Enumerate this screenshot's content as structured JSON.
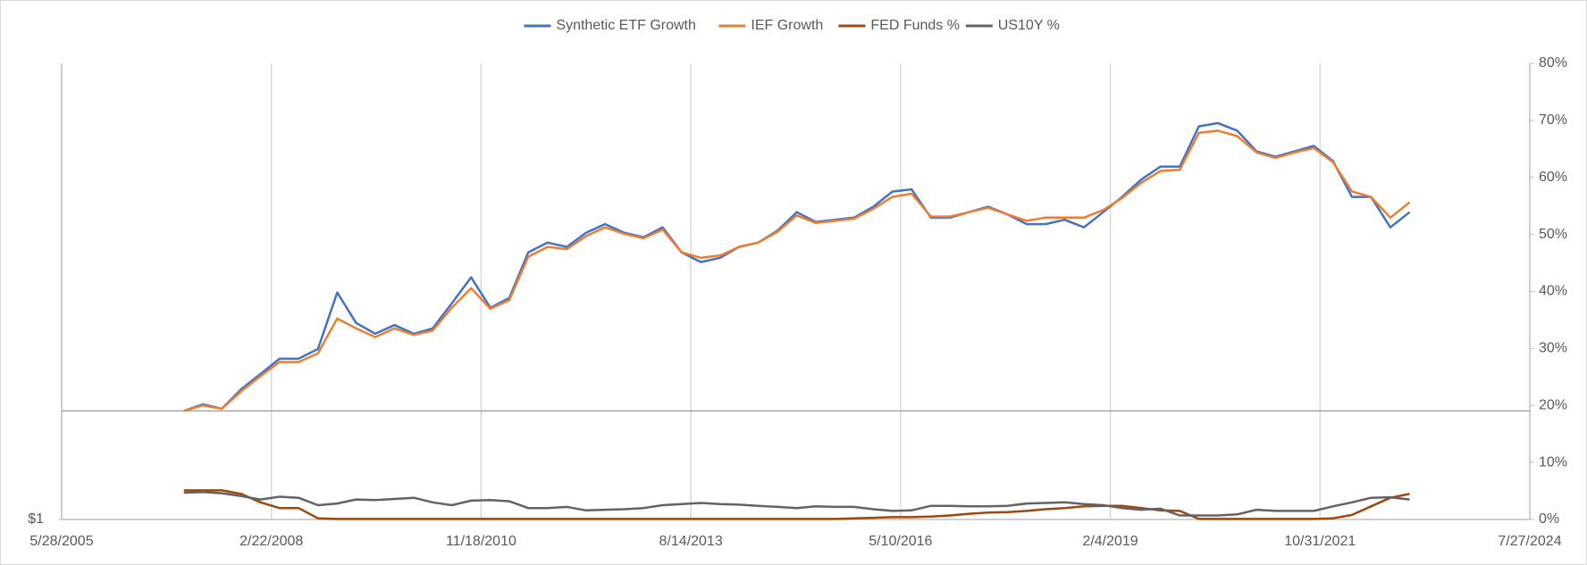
{
  "chart_data": {
    "type": "line",
    "x": [
      "1/1/2007",
      "4/1/2007",
      "7/1/2007",
      "10/1/2007",
      "1/1/2008",
      "4/1/2008",
      "7/1/2008",
      "10/1/2008",
      "1/1/2009",
      "4/1/2009",
      "7/1/2009",
      "10/1/2009",
      "1/1/2010",
      "4/1/2010",
      "7/1/2010",
      "10/1/2010",
      "1/1/2011",
      "4/1/2011",
      "7/1/2011",
      "10/1/2011",
      "1/1/2012",
      "4/1/2012",
      "7/1/2012",
      "10/1/2012",
      "1/1/2013",
      "4/1/2013",
      "7/1/2013",
      "10/1/2013",
      "1/1/2014",
      "4/1/2014",
      "7/1/2014",
      "10/1/2014",
      "1/1/2015",
      "4/1/2015",
      "7/1/2015",
      "10/1/2015",
      "1/1/2016",
      "4/1/2016",
      "7/1/2016",
      "10/1/2016",
      "1/1/2017",
      "4/1/2017",
      "7/1/2017",
      "10/1/2017",
      "1/1/2018",
      "4/1/2018",
      "7/1/2018",
      "10/1/2018",
      "1/1/2019",
      "4/1/2019",
      "7/1/2019",
      "10/1/2019",
      "1/1/2020",
      "4/1/2020",
      "7/1/2020",
      "10/1/2020",
      "1/1/2021",
      "4/1/2021",
      "7/1/2021",
      "10/1/2021",
      "1/1/2022",
      "4/1/2022",
      "7/1/2022",
      "10/1/2022",
      "1/1/2023"
    ],
    "series": [
      {
        "name": "Synthetic ETF Growth",
        "color": "#4472c4",
        "values": [
          2.0,
          2.06,
          2.02,
          2.2,
          2.34,
          2.48,
          2.48,
          2.57,
          3.09,
          2.81,
          2.71,
          2.79,
          2.71,
          2.76,
          2.99,
          3.23,
          2.95,
          3.04,
          3.46,
          3.55,
          3.51,
          3.64,
          3.72,
          3.64,
          3.6,
          3.69,
          3.46,
          3.37,
          3.41,
          3.51,
          3.55,
          3.66,
          3.83,
          3.74,
          3.76,
          3.78,
          3.88,
          4.02,
          4.04,
          3.78,
          3.78,
          3.83,
          3.88,
          3.81,
          3.72,
          3.72,
          3.76,
          3.69,
          3.83,
          3.97,
          4.13,
          4.25,
          4.25,
          4.62,
          4.65,
          4.58,
          4.39,
          4.34,
          4.39,
          4.44,
          4.3,
          3.97,
          3.97,
          3.69,
          3.83
        ]
      },
      {
        "name": "IEF Growth",
        "color": "#ed7d31",
        "values": [
          2.0,
          2.05,
          2.02,
          2.18,
          2.32,
          2.45,
          2.45,
          2.53,
          2.85,
          2.76,
          2.68,
          2.76,
          2.7,
          2.74,
          2.95,
          3.13,
          2.94,
          3.02,
          3.42,
          3.51,
          3.49,
          3.61,
          3.69,
          3.63,
          3.59,
          3.67,
          3.46,
          3.41,
          3.43,
          3.51,
          3.55,
          3.65,
          3.8,
          3.73,
          3.75,
          3.77,
          3.86,
          3.97,
          4.0,
          3.79,
          3.79,
          3.83,
          3.87,
          3.81,
          3.75,
          3.78,
          3.78,
          3.78,
          3.85,
          3.96,
          4.1,
          4.21,
          4.22,
          4.56,
          4.58,
          4.53,
          4.38,
          4.33,
          4.38,
          4.42,
          4.29,
          4.02,
          3.97,
          3.78,
          3.92
        ]
      },
      {
        "name": "FED Funds %",
        "color": "#9e480e",
        "axis": "y2",
        "values": [
          5.1,
          5.1,
          5.1,
          4.5,
          3.0,
          2.0,
          2.0,
          0.2,
          0.1,
          0.1,
          0.1,
          0.1,
          0.1,
          0.1,
          0.1,
          0.1,
          0.1,
          0.1,
          0.1,
          0.1,
          0.1,
          0.1,
          0.1,
          0.1,
          0.1,
          0.1,
          0.1,
          0.1,
          0.1,
          0.1,
          0.1,
          0.1,
          0.1,
          0.1,
          0.1,
          0.2,
          0.3,
          0.4,
          0.4,
          0.5,
          0.7,
          1.0,
          1.2,
          1.3,
          1.5,
          1.8,
          2.0,
          2.3,
          2.4,
          2.4,
          2.0,
          1.6,
          1.5,
          0.1,
          0.1,
          0.1,
          0.1,
          0.1,
          0.1,
          0.1,
          0.2,
          0.8,
          2.3,
          3.8,
          4.5
        ]
      },
      {
        "name": "US10Y %",
        "color": "#636363",
        "axis": "y2",
        "values": [
          4.7,
          4.8,
          4.6,
          4.1,
          3.5,
          4.0,
          3.8,
          2.5,
          2.8,
          3.5,
          3.4,
          3.6,
          3.8,
          3.0,
          2.5,
          3.3,
          3.4,
          3.2,
          2.0,
          2.0,
          2.2,
          1.6,
          1.7,
          1.8,
          2.0,
          2.5,
          2.7,
          2.9,
          2.7,
          2.6,
          2.4,
          2.2,
          2.0,
          2.3,
          2.2,
          2.2,
          1.8,
          1.5,
          1.6,
          2.4,
          2.4,
          2.3,
          2.3,
          2.4,
          2.8,
          2.9,
          3.0,
          2.7,
          2.5,
          2.0,
          1.7,
          1.9,
          0.7,
          0.7,
          0.7,
          0.9,
          1.7,
          1.5,
          1.5,
          1.5,
          2.3,
          3.0,
          3.8,
          3.9,
          3.5
        ]
      }
    ],
    "xlim": [
      "5/28/2005",
      "7/27/2024"
    ],
    "xticks": [
      "5/28/2005",
      "2/22/2008",
      "11/18/2010",
      "8/14/2013",
      "5/10/2016",
      "2/4/2019",
      "10/31/2021",
      "7/27/2024"
    ],
    "ylim": [
      1,
      5.2
    ],
    "yticks": [
      {
        "value": 1,
        "label": "$1"
      }
    ],
    "reference_line": 2,
    "y2lim": [
      0,
      80
    ],
    "y2ticks": [
      {
        "value": 0,
        "label": "0%"
      },
      {
        "value": 10,
        "label": "10%"
      },
      {
        "value": 20,
        "label": "20%"
      },
      {
        "value": 30,
        "label": "30%"
      },
      {
        "value": 40,
        "label": "40%"
      },
      {
        "value": 50,
        "label": "50%"
      },
      {
        "value": 60,
        "label": "60%"
      },
      {
        "value": 70,
        "label": "70%"
      },
      {
        "value": 80,
        "label": "80%"
      }
    ],
    "grid": true,
    "legend": "top"
  }
}
